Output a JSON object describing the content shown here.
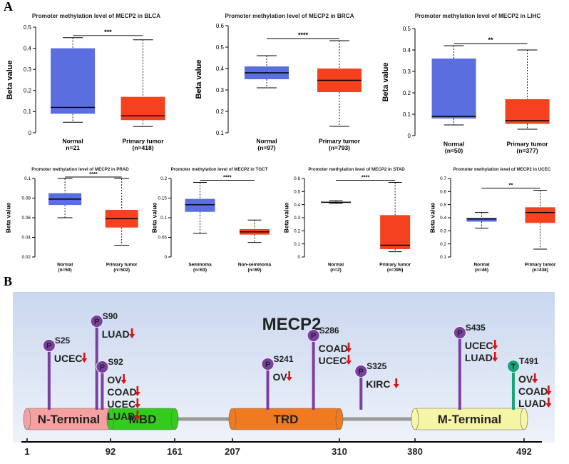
{
  "panels": {
    "a_label": "A",
    "b_label": "B"
  },
  "colors": {
    "normal": "#5b6ee0",
    "tumor": "#f5421e",
    "purple": "#7b3fa0",
    "green": "#1aa37a",
    "arrow": "#e01010"
  },
  "chart_data": [
    {
      "type": "box",
      "title": "Promoter methylation level of MECP2 in BLCA",
      "ylabel": "Beta value",
      "ylim": [
        0,
        0.5
      ],
      "ticks": [
        "0",
        "0.1",
        "0.2",
        "0.3",
        "0.4",
        "0.5"
      ],
      "tick_values": [
        0,
        0.1,
        0.2,
        0.3,
        0.4,
        0.5
      ],
      "significance": "***",
      "boxes": [
        {
          "name": "Normal",
          "n": "n=21",
          "min": 0.05,
          "q1": 0.09,
          "median": 0.12,
          "q3": 0.4,
          "max": 0.45
        },
        {
          "name": "Primary tumor",
          "n": "(n=418)",
          "min": 0.03,
          "q1": 0.06,
          "median": 0.08,
          "q3": 0.17,
          "max": 0.44
        }
      ]
    },
    {
      "type": "box",
      "title": "Promoter methylation level of MECP2 in BRCA",
      "ylabel": "Beta value",
      "ylim": [
        0.1,
        0.6
      ],
      "ticks": [
        "0.1",
        "0.2",
        "0.3",
        "0.4",
        "0.5",
        "0.6"
      ],
      "tick_values": [
        0.1,
        0.2,
        0.3,
        0.4,
        0.5,
        0.6
      ],
      "significance": "****",
      "boxes": [
        {
          "name": "Normal",
          "n": "(n=97)",
          "min": 0.31,
          "q1": 0.35,
          "median": 0.38,
          "q3": 0.41,
          "max": 0.46
        },
        {
          "name": "Primary tumor",
          "n": "(n=793)",
          "min": 0.13,
          "q1": 0.29,
          "median": 0.345,
          "q3": 0.4,
          "max": 0.53
        }
      ]
    },
    {
      "type": "box",
      "title": "Promoter methylation level of MECP2 in LIHC",
      "ylabel": "Beta value",
      "ylim": [
        0,
        0.5
      ],
      "ticks": [
        "0",
        "0.1",
        "0.2",
        "0.3",
        "0.4",
        "0.5"
      ],
      "tick_values": [
        0,
        0.1,
        0.2,
        0.3,
        0.4,
        0.5
      ],
      "significance": "**",
      "boxes": [
        {
          "name": "Normal",
          "n": "(n=50)",
          "min": 0.05,
          "q1": 0.08,
          "median": 0.09,
          "q3": 0.36,
          "max": 0.42
        },
        {
          "name": "Primary tumor",
          "n": "(n=377)",
          "min": 0.03,
          "q1": 0.055,
          "median": 0.07,
          "q3": 0.17,
          "max": 0.4
        }
      ]
    },
    {
      "type": "box",
      "title": "Promoter methylation level of MECP2 in PRAD",
      "ylabel": "Beta value",
      "ylim": [
        0.02,
        0.1
      ],
      "ticks": [
        "0.02",
        "0.04",
        "0.06",
        "0.08",
        "0.1"
      ],
      "tick_values": [
        0.02,
        0.04,
        0.06,
        0.08,
        0.1
      ],
      "significance": "****",
      "boxes": [
        {
          "name": "Normal",
          "n": "(n=50)",
          "min": 0.06,
          "q1": 0.073,
          "median": 0.079,
          "q3": 0.085,
          "max": 0.1
        },
        {
          "name": "Primary tumor",
          "n": "(n=502)",
          "min": 0.032,
          "q1": 0.05,
          "median": 0.059,
          "q3": 0.068,
          "max": 0.1
        }
      ]
    },
    {
      "type": "box",
      "title": "Promoter methylation level of MECP2 in TGCT",
      "ylabel": "Beta value",
      "ylim": [
        0,
        0.2
      ],
      "ticks": [
        "0",
        "0.05",
        "0.1",
        "0.15",
        "0.2"
      ],
      "tick_values": [
        0,
        0.05,
        0.1,
        0.15,
        0.2
      ],
      "significance": "****",
      "boxes": [
        {
          "name": "Seminoma",
          "n": "(n=63)",
          "min": 0.06,
          "q1": 0.115,
          "median": 0.133,
          "q3": 0.148,
          "max": 0.19
        },
        {
          "name": "Non-seminoma",
          "n": "(n=69)",
          "min": 0.037,
          "q1": 0.057,
          "median": 0.064,
          "q3": 0.071,
          "max": 0.094
        }
      ]
    },
    {
      "type": "box",
      "title": "Promoter methylation level of MECP2 in STAD",
      "ylabel": "Beta value",
      "ylim": [
        0,
        0.6
      ],
      "ticks": [
        "0",
        "0.1",
        "0.2",
        "0.3",
        "0.4",
        "0.5",
        "0.6"
      ],
      "tick_values": [
        0,
        0.1,
        0.2,
        0.3,
        0.4,
        0.5,
        0.6
      ],
      "significance": "****",
      "boxes": [
        {
          "name": "Normal",
          "n": "(n=2)",
          "min": 0.41,
          "q1": 0.415,
          "median": 0.418,
          "q3": 0.422,
          "max": 0.43
        },
        {
          "name": "Primary tumor",
          "n": "(n=395)",
          "min": 0.04,
          "q1": 0.06,
          "median": 0.09,
          "q3": 0.32,
          "max": 0.57
        }
      ]
    },
    {
      "type": "box",
      "title": "Promoter methylation level of MECP2 in UCEC",
      "ylabel": "Beta value",
      "ylim": [
        0.1,
        0.7
      ],
      "ticks": [
        "0.1",
        "0.2",
        "0.3",
        "0.4",
        "0.5",
        "0.6",
        "0.7"
      ],
      "tick_values": [
        0.1,
        0.2,
        0.3,
        0.4,
        0.5,
        0.6,
        0.7
      ],
      "significance": "**",
      "boxes": [
        {
          "name": "Normal",
          "n": "(n=46)",
          "min": 0.32,
          "q1": 0.37,
          "median": 0.39,
          "q3": 0.4,
          "max": 0.44
        },
        {
          "name": "Primary tumor",
          "n": "(n=438)",
          "min": 0.16,
          "q1": 0.36,
          "median": 0.44,
          "q3": 0.48,
          "max": 0.61
        }
      ]
    }
  ],
  "protein": {
    "title": "MECP2",
    "ruler_ticks": [
      "1",
      "92",
      "161",
      "207",
      "310",
      "380",
      "492"
    ],
    "ruler_values": [
      1,
      92,
      161,
      207,
      310,
      380,
      492
    ],
    "domains": [
      {
        "name": "N-Terminal",
        "start": 1,
        "end": 92,
        "color": "#f7a0a0"
      },
      {
        "name": "MBD",
        "start": 92,
        "end": 161,
        "color": "#33cc1a"
      },
      {
        "name": "TRD",
        "start": 207,
        "end": 310,
        "color": "#f07a20"
      },
      {
        "name": "M-Terminal",
        "start": 380,
        "end": 492,
        "color": "#f6f5a6"
      }
    ],
    "sites": [
      {
        "site": "S25",
        "mark": "P",
        "position": 25,
        "cancers": [
          "UCEC"
        ]
      },
      {
        "site": "S90",
        "mark": "P",
        "position": 77,
        "cancers": [
          "LUAD"
        ]
      },
      {
        "site": "S92",
        "mark": "P",
        "position": 83,
        "cancers": [
          "OV",
          "COAD",
          "UCEC",
          "LUAD"
        ]
      },
      {
        "site": "S241",
        "mark": "P",
        "position": 241,
        "cancers": [
          "OV"
        ]
      },
      {
        "site": "S286",
        "mark": "P",
        "position": 285,
        "cancers": [
          "COAD",
          "UCEC"
        ]
      },
      {
        "site": "S325",
        "mark": "P",
        "position": 330,
        "cancers": [
          "KIRC"
        ]
      },
      {
        "site": "S435",
        "mark": "P",
        "position": 426,
        "cancers": [
          "UCEC",
          "LUAD"
        ]
      },
      {
        "site": "T491",
        "mark": "T",
        "position": 481,
        "cancers": [
          "OV",
          "COAD",
          "LUAD"
        ]
      }
    ]
  }
}
